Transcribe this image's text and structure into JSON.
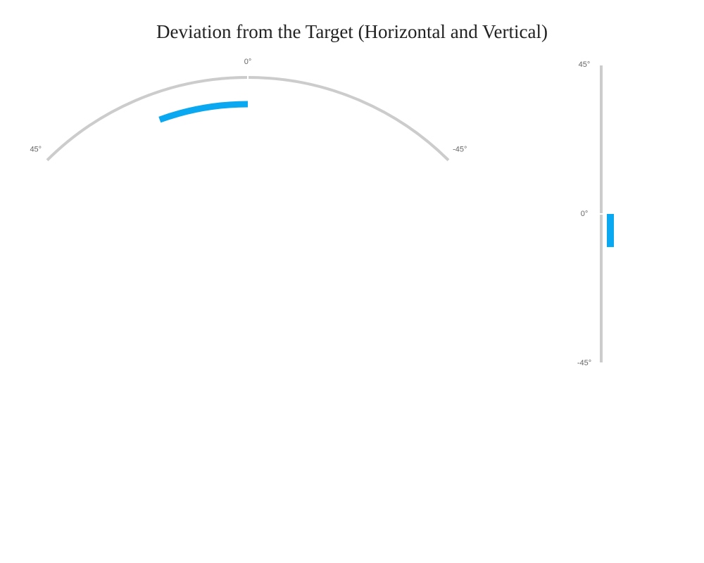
{
  "title": "Deviation from the Target (Horizontal and Vertical)",
  "chart_data": [
    {
      "type": "gauge",
      "shape": "arc",
      "xlim": [
        45,
        -45
      ],
      "xticks": [
        {
          "value": 45,
          "label": "45°"
        },
        {
          "value": 0,
          "label": "0°"
        },
        {
          "value": -45,
          "label": "-45°"
        }
      ],
      "track_color": "#cccccc",
      "series": [
        {
          "color": "#0aa8f0",
          "values": [
            20
          ]
        }
      ]
    },
    {
      "type": "gauge",
      "shape": "vertical",
      "ylim": [
        -45,
        45
      ],
      "yticks": [
        {
          "value": 45,
          "label": "45°"
        },
        {
          "value": 0,
          "label": "0°"
        },
        {
          "value": -45,
          "label": "-45°"
        }
      ],
      "track_color": "#cccccc",
      "series": [
        {
          "color": "#0aa8f0",
          "values": [
            -10
          ]
        }
      ]
    }
  ]
}
